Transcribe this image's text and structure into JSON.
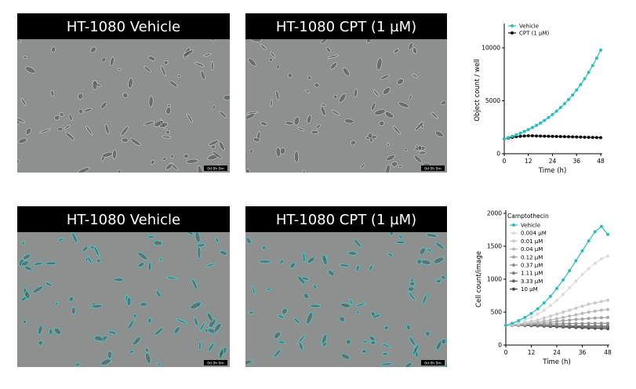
{
  "panels": [
    {
      "title": "HT-1080 Vehicle",
      "timestamp": "0d 0h 0m"
    },
    {
      "title": "HT-1080 CPT (1 µM)",
      "timestamp": "0d 0h 0m"
    },
    {
      "title": "HT-1080 Vehicle",
      "timestamp": "0d 0h 0m"
    },
    {
      "title": "HT-1080 CPT (1 µM)",
      "timestamp": "0d 0h 0m"
    }
  ],
  "chart_data": [
    {
      "type": "line",
      "x_label": "Time (h)",
      "y_label": "Object count / well",
      "x": [
        0,
        2,
        4,
        6,
        8,
        10,
        12,
        14,
        16,
        18,
        20,
        22,
        24,
        26,
        28,
        30,
        32,
        34,
        36,
        38,
        40,
        42,
        44,
        46,
        48
      ],
      "xlim": [
        0,
        48
      ],
      "xticks": [
        0,
        12,
        24,
        36,
        48
      ],
      "ylim": [
        0,
        12000
      ],
      "yticks": [
        0,
        5000,
        10000
      ],
      "series": [
        {
          "name": "Vehicle",
          "color": "#2bbcbc",
          "values": [
            1400,
            1520,
            1650,
            1790,
            1940,
            2100,
            2280,
            2470,
            2680,
            2900,
            3150,
            3420,
            3700,
            4020,
            4360,
            4720,
            5120,
            5550,
            6020,
            6530,
            7080,
            7680,
            8330,
            9030,
            9790
          ]
        },
        {
          "name": "CPT (1 µM)",
          "color": "#111111",
          "values": [
            1400,
            1480,
            1550,
            1610,
            1650,
            1680,
            1690,
            1690,
            1680,
            1670,
            1660,
            1650,
            1640,
            1630,
            1620,
            1610,
            1600,
            1590,
            1580,
            1570,
            1560,
            1550,
            1540,
            1530,
            1520
          ]
        }
      ]
    },
    {
      "type": "line",
      "x_label": "Time (h)",
      "y_label": "Cell count/image",
      "legend_title": "Camptothecin",
      "x": [
        0,
        3,
        6,
        9,
        12,
        15,
        18,
        21,
        24,
        27,
        30,
        33,
        36,
        39,
        42,
        45,
        48
      ],
      "xlim": [
        0,
        48
      ],
      "xticks": [
        0,
        12,
        24,
        36,
        48
      ],
      "ylim": [
        0,
        2000
      ],
      "yticks": [
        0,
        500,
        1000,
        1500,
        2000
      ],
      "series": [
        {
          "name": "Vehicle",
          "color": "#2bbcbc",
          "values": [
            300,
            330,
            370,
            420,
            480,
            550,
            640,
            740,
            860,
            990,
            1130,
            1280,
            1430,
            1580,
            1720,
            1800,
            1680
          ]
        },
        {
          "name": "0.004 µM",
          "color": "#dcdcdc",
          "values": [
            300,
            320,
            350,
            380,
            420,
            470,
            530,
            600,
            680,
            770,
            870,
            970,
            1070,
            1160,
            1240,
            1310,
            1350
          ]
        },
        {
          "name": "0.01 µM",
          "color": "#cacaca",
          "values": [
            300,
            310,
            320,
            340,
            360,
            380,
            410,
            440,
            470,
            500,
            530,
            560,
            590,
            620,
            640,
            660,
            680
          ]
        },
        {
          "name": "0.04 µM",
          "color": "#b8b8b8",
          "values": [
            300,
            310,
            315,
            325,
            335,
            350,
            365,
            380,
            400,
            420,
            440,
            460,
            480,
            500,
            515,
            530,
            540
          ]
        },
        {
          "name": "0.12 µM",
          "color": "#a4a4a4",
          "values": [
            300,
            305,
            310,
            315,
            320,
            330,
            340,
            350,
            360,
            370,
            380,
            390,
            395,
            405,
            410,
            415,
            420
          ]
        },
        {
          "name": "0.37 µM",
          "color": "#909090",
          "values": [
            300,
            305,
            308,
            310,
            312,
            315,
            318,
            320,
            322,
            324,
            326,
            327,
            328,
            329,
            330,
            330,
            330
          ]
        },
        {
          "name": "1.11 µM",
          "color": "#7a7a7a",
          "values": [
            300,
            303,
            305,
            306,
            305,
            303,
            301,
            299,
            297,
            295,
            294,
            293,
            292,
            291,
            290,
            290,
            290
          ]
        },
        {
          "name": "3.33 µM",
          "color": "#626262",
          "values": [
            300,
            302,
            303,
            302,
            300,
            297,
            294,
            291,
            288,
            285,
            282,
            280,
            278,
            276,
            274,
            272,
            270
          ]
        },
        {
          "name": "10 µM",
          "color": "#444444",
          "values": [
            300,
            301,
            300,
            298,
            295,
            291,
            287,
            283,
            279,
            275,
            271,
            267,
            263,
            259,
            256,
            253,
            250
          ]
        }
      ]
    }
  ]
}
